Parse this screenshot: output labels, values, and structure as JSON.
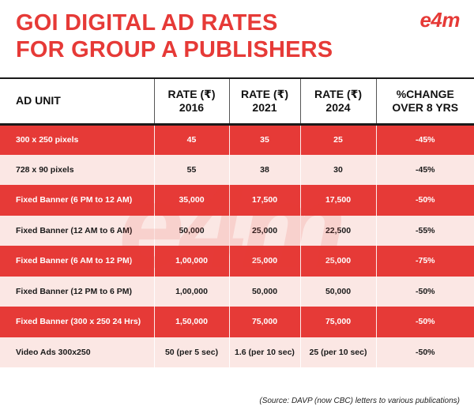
{
  "title": {
    "line1": "GOI DIGITAL AD RATES",
    "line2": "FOR GROUP A PUBLISHERS"
  },
  "logo_text": "e4m",
  "watermark_text": "e4m",
  "colors": {
    "accent": "#e63a37",
    "row_alt": "#fbe7e4"
  },
  "table": {
    "headers": [
      {
        "line1": "AD UNIT",
        "line2": ""
      },
      {
        "line1": "RATE (₹)",
        "line2": "2016"
      },
      {
        "line1": "RATE (₹)",
        "line2": "2021"
      },
      {
        "line1": "RATE (₹)",
        "line2": "2024"
      },
      {
        "line1": "%CHANGE",
        "line2": "OVER 8 YRS"
      }
    ],
    "rows": [
      [
        "300 x 250 pixels",
        "45",
        "35",
        "25",
        "-45%"
      ],
      [
        "728 x 90 pixels",
        "55",
        "38",
        "30",
        "-45%"
      ],
      [
        "Fixed Banner (6 PM to 12 AM)",
        "35,000",
        "17,500",
        "17,500",
        "-50%"
      ],
      [
        "Fixed Banner  (12 AM to 6 AM)",
        "50,000",
        "25,000",
        "22,500",
        "-55%"
      ],
      [
        "Fixed Banner  (6 AM to 12 PM)",
        "1,00,000",
        "25,000",
        "25,000",
        "-75%"
      ],
      [
        "Fixed Banner  (12 PM to 6 PM)",
        "1,00,000",
        "50,000",
        "50,000",
        "-50%"
      ],
      [
        "Fixed Banner (300 x 250 24 Hrs)",
        "1,50,000",
        "75,000",
        "75,000",
        "-50%"
      ],
      [
        "Video Ads 300x250",
        "50 (per 5 sec)",
        "1.6 (per 10 sec)",
        "25 (per 10 sec)",
        "-50%"
      ]
    ]
  },
  "source": "(Source: DAVP (now CBC) letters to various publications)"
}
